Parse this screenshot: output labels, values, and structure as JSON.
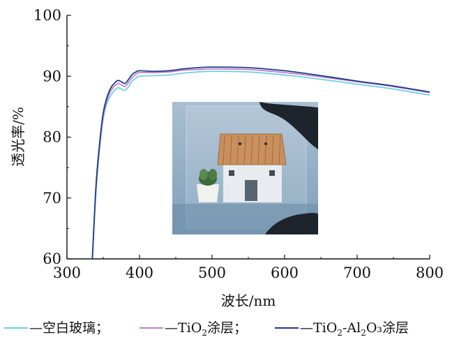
{
  "chart_data": {
    "type": "line",
    "xlabel": "波长/nm",
    "ylabel": "透光率/%",
    "xlim": [
      300,
      800
    ],
    "ylim": [
      60,
      100
    ],
    "xticks": [
      300,
      400,
      500,
      600,
      700,
      800
    ],
    "yticks": [
      60,
      70,
      80,
      90,
      100
    ],
    "grid": false,
    "legend_position": "bottom",
    "series": [
      {
        "name": "空白玻璃",
        "legend": {
          "prefix": "—空白玻璃；",
          "sub1": "",
          "mid": "",
          "sub2": "",
          "tail": ""
        },
        "color": "#6ecfe0",
        "x": [
          335,
          340,
          345,
          350,
          355,
          360,
          365,
          370,
          375,
          380,
          385,
          390,
          395,
          400,
          420,
          440,
          460,
          480,
          500,
          550,
          600,
          650,
          700,
          750,
          800
        ],
        "y": [
          60,
          71,
          78,
          83,
          85.5,
          86.8,
          87.6,
          88.1,
          87.9,
          87.7,
          88.3,
          89.2,
          89.7,
          90.0,
          90.1,
          90.2,
          90.5,
          90.7,
          90.8,
          90.7,
          90.2,
          89.5,
          88.7,
          87.9,
          86.9
        ]
      },
      {
        "name": "TiO₂涂层",
        "legend": {
          "prefix": "—TiO",
          "sub1": "2",
          "mid": "涂层；",
          "sub2": "",
          "tail": ""
        },
        "color": "#c27fc8",
        "x": [
          335,
          340,
          345,
          350,
          355,
          360,
          365,
          370,
          375,
          380,
          385,
          390,
          395,
          400,
          420,
          440,
          460,
          480,
          500,
          550,
          600,
          650,
          700,
          750,
          800
        ],
        "y": [
          60,
          71.5,
          78.5,
          83.5,
          86,
          87.5,
          88.3,
          88.8,
          88.6,
          88.3,
          89,
          89.8,
          90.3,
          90.6,
          90.6,
          90.7,
          91,
          91.1,
          91.2,
          91.1,
          90.6,
          89.9,
          89.1,
          88.3,
          87.3
        ]
      },
      {
        "name": "TiO₂-Al₂O₃涂层",
        "legend": {
          "prefix": "—TiO",
          "sub1": "2",
          "mid": "-Al",
          "sub2": "2",
          "tail": "O₃涂层"
        },
        "color": "#1f3a8a",
        "x": [
          335,
          340,
          345,
          350,
          355,
          360,
          365,
          370,
          375,
          380,
          385,
          390,
          395,
          400,
          420,
          440,
          460,
          480,
          500,
          550,
          600,
          650,
          700,
          750,
          800
        ],
        "y": [
          60,
          72,
          79,
          84,
          86.5,
          88,
          88.8,
          89.3,
          89.1,
          88.8,
          89.5,
          90.3,
          90.7,
          90.9,
          90.8,
          90.9,
          91.2,
          91.4,
          91.5,
          91.4,
          90.9,
          90.1,
          89.2,
          88.4,
          87.4
        ]
      }
    ]
  },
  "inset_photo": {
    "description": "house",
    "colors": {
      "background": "#7fa0ba",
      "sky": "#a9bfd2",
      "house": "#e8ecf0",
      "roof": "#c98f5e",
      "door": "#5a6470",
      "pot": "#f1f1ee",
      "plant": "#3e6a3a",
      "hand": "#1e242c"
    }
  }
}
